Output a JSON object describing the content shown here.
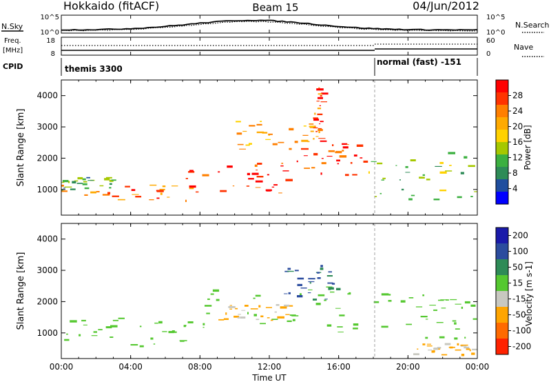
{
  "header": {
    "radar": "Hokkaido (fitACF)",
    "beam": "Beam 15",
    "date": "04/Jun/2012"
  },
  "top_panels": {
    "nsky_label": "N.Sky",
    "nsky_ticks": [
      "10^5",
      "10^0"
    ],
    "nsearch_label": "N.Search",
    "nsearch_ticks": [
      "10^5",
      "10^0"
    ],
    "freq_label_line1": "Freq.",
    "freq_label_line2": "[MHz]",
    "freq_ticks": [
      "18",
      "8"
    ],
    "nave_label": "Nave",
    "nave_ticks": [
      "60",
      "0"
    ],
    "cpid_label": "CPID",
    "cpid_segments": [
      {
        "text": "themis 3300",
        "start_hour": 0
      },
      {
        "text": "normal (fast) -151",
        "start_hour": 18
      }
    ]
  },
  "power_colorbar": {
    "label": "Power [dB]",
    "ticks": [
      "28",
      "24",
      "20",
      "16",
      "12",
      "8",
      "4"
    ],
    "colors": [
      "#ff0000",
      "#ff3300",
      "#ff7f00",
      "#ffaa00",
      "#ffd200",
      "#a6c800",
      "#3cb040",
      "#2e8b57",
      "#1f4e9e",
      "#0000ff"
    ]
  },
  "velocity_colorbar": {
    "label": "Velocity [m s-1]",
    "ticks": [
      "200",
      "100",
      "50",
      "15",
      "-15",
      "-50",
      "-100",
      "-200"
    ],
    "colors": [
      "#1a1aaa",
      "#2b4c9e",
      "#2e8b57",
      "#55c830",
      "#c8c8c0",
      "#ffa500",
      "#ff6a00",
      "#ff2200"
    ]
  },
  "axes": {
    "ylabel": "Slant Range [km]",
    "xlabel": "Time UT",
    "x_ticks": [
      "00:00",
      "04:00",
      "08:00",
      "12:00",
      "16:00",
      "20:00",
      "00:00"
    ],
    "y_ticks": [
      "4000",
      "3000",
      "2000",
      "1000"
    ]
  },
  "chart_data": {
    "type": "heatmap",
    "title": "Hokkaido (fitACF) Beam 15 04/Jun/2012",
    "xlabel": "Time UT",
    "ylabel": "Slant Range [km]",
    "xlim": [
      0,
      24
    ],
    "ylim": [
      180,
      4500
    ],
    "panels": [
      {
        "name": "Power [dB]",
        "color_scale": [
          0,
          30
        ],
        "features": [
          {
            "t0": 0.0,
            "t1": 8.0,
            "r0": 600,
            "r1": 1200,
            "value": 24
          },
          {
            "t0": 0.0,
            "t1": 3.0,
            "r0": 1000,
            "r1": 1400,
            "value": 10
          },
          {
            "t0": 7.0,
            "t1": 13.0,
            "r0": 900,
            "r1": 1900,
            "value": 26
          },
          {
            "t0": 10.0,
            "t1": 15.0,
            "r0": 2300,
            "r1": 3200,
            "value": 20
          },
          {
            "t0": 13.0,
            "t1": 17.5,
            "r0": 1400,
            "r1": 2500,
            "value": 27
          },
          {
            "t0": 17.5,
            "t1": 24.0,
            "r0": 700,
            "r1": 2300,
            "value": 12
          },
          {
            "t0": 14.5,
            "t1": 15.0,
            "r0": 2500,
            "r1": 4300,
            "value": 24
          }
        ]
      },
      {
        "name": "Velocity [m s-1]",
        "color_scale": [
          -200,
          200
        ],
        "features": [
          {
            "t0": 0.0,
            "t1": 8.0,
            "r0": 600,
            "r1": 1500,
            "value": 0
          },
          {
            "t0": 8.0,
            "t1": 17.0,
            "r0": 1000,
            "r1": 2500,
            "value": 0
          },
          {
            "t0": 9.0,
            "t1": 13.0,
            "r0": 1400,
            "r1": 2000,
            "value": -50
          },
          {
            "t0": 12.5,
            "t1": 16.0,
            "r0": 2000,
            "r1": 3200,
            "value": 50
          },
          {
            "t0": 18.0,
            "t1": 24.0,
            "r0": 700,
            "r1": 2300,
            "value": 0
          },
          {
            "t0": 20.0,
            "t1": 24.0,
            "r0": 300,
            "r1": 700,
            "value": -60
          }
        ]
      }
    ]
  }
}
